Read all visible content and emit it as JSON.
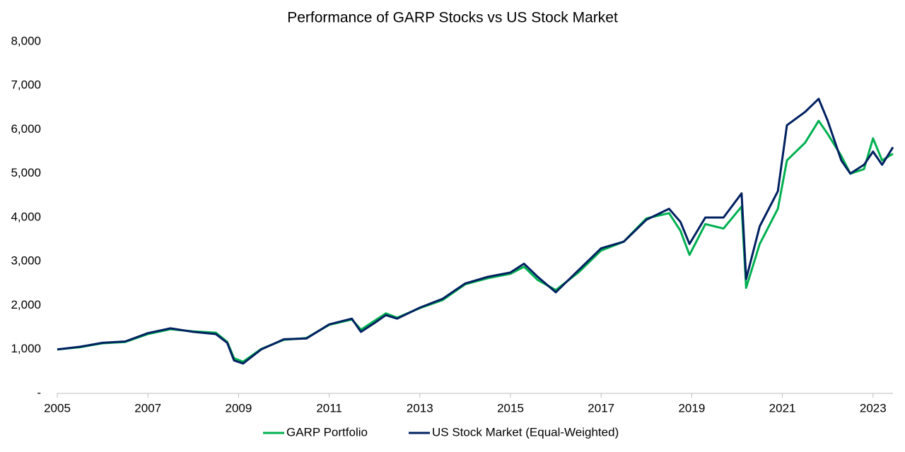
{
  "chart_data": {
    "type": "line",
    "title": "Performance of GARP Stocks vs US Stock Market",
    "x": [
      2005,
      2005.5,
      2006,
      2006.5,
      2007,
      2007.5,
      2008,
      2008.5,
      2008.75,
      2008.9,
      2009.1,
      2009.5,
      2010,
      2010.5,
      2011,
      2011.5,
      2011.7,
      2012,
      2012.25,
      2012.5,
      2013,
      2013.5,
      2014,
      2014.5,
      2015,
      2015.3,
      2015.6,
      2016,
      2016.5,
      2017,
      2017.5,
      2018,
      2018.5,
      2018.75,
      2018.95,
      2019.3,
      2019.7,
      2020.1,
      2020.2,
      2020.5,
      2020.9,
      2021.1,
      2021.5,
      2021.8,
      2022,
      2022.3,
      2022.5,
      2022.8,
      2023,
      2023.2,
      2023.44
    ],
    "series": [
      {
        "name": "GARP Portfolio",
        "color": "#00b050",
        "values": [
          1000,
          1050,
          1140,
          1170,
          1350,
          1460,
          1410,
          1380,
          1170,
          800,
          720,
          1010,
          1220,
          1260,
          1560,
          1680,
          1450,
          1650,
          1820,
          1720,
          1940,
          2120,
          2480,
          2620,
          2720,
          2880,
          2580,
          2350,
          2750,
          3250,
          3450,
          3980,
          4100,
          3700,
          3150,
          3850,
          3750,
          4250,
          2400,
          3400,
          4200,
          5300,
          5700,
          6200,
          5900,
          5400,
          5000,
          5100,
          5800,
          5300,
          5450
        ]
      },
      {
        "name": "US Stock Market (Equal-Weighted)",
        "color": "#002060",
        "values": [
          1000,
          1060,
          1150,
          1180,
          1370,
          1480,
          1400,
          1350,
          1150,
          750,
          680,
          1000,
          1230,
          1250,
          1570,
          1700,
          1400,
          1600,
          1780,
          1700,
          1950,
          2150,
          2500,
          2650,
          2750,
          2950,
          2650,
          2300,
          2800,
          3300,
          3450,
          3950,
          4200,
          3900,
          3400,
          4000,
          4000,
          4550,
          2600,
          3800,
          4600,
          6100,
          6400,
          6700,
          6200,
          5300,
          5000,
          5200,
          5500,
          5200,
          5600
        ]
      }
    ],
    "xlim": [
      2005,
      2023.44
    ],
    "xticks": [
      2005,
      2007,
      2009,
      2011,
      2013,
      2015,
      2017,
      2019,
      2021,
      2023
    ],
    "ylim": [
      0,
      8000
    ],
    "yticks": [
      {
        "value": 0,
        "label": "-"
      },
      {
        "value": 1000,
        "label": "1,000"
      },
      {
        "value": 2000,
        "label": "2,000"
      },
      {
        "value": 3000,
        "label": "3,000"
      },
      {
        "value": 4000,
        "label": "4,000"
      },
      {
        "value": 5000,
        "label": "5,000"
      },
      {
        "value": 6000,
        "label": "6,000"
      },
      {
        "value": 7000,
        "label": "7,000"
      },
      {
        "value": 8000,
        "label": "8,000"
      }
    ],
    "legend": "bottom"
  }
}
